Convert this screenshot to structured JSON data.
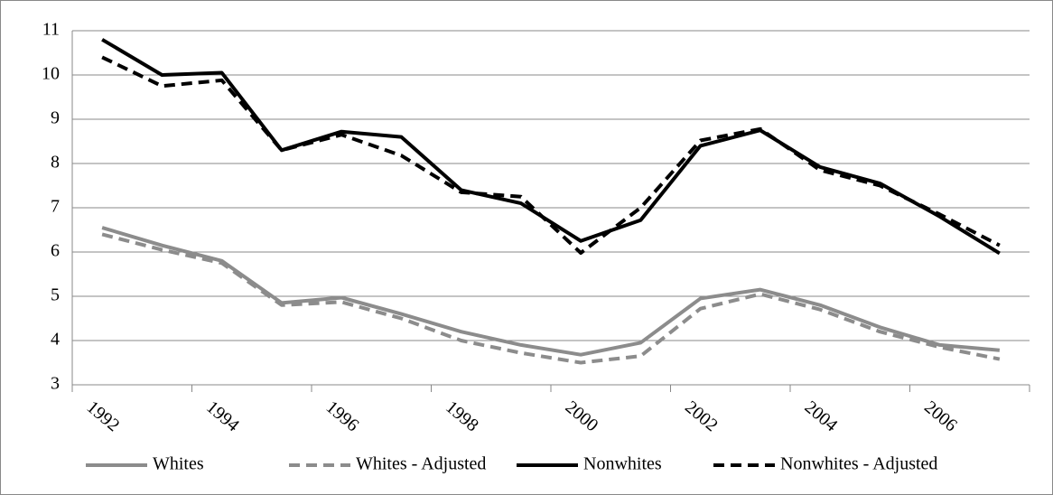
{
  "chart_data": {
    "type": "line",
    "categories": [
      "1992",
      null,
      "1994",
      null,
      "1996",
      null,
      "1998",
      null,
      "2000",
      null,
      "2002",
      null,
      "2004",
      null,
      "2006",
      null
    ],
    "series": [
      {
        "name": "Whites",
        "color": "#8c8c8c",
        "dashed": false,
        "values": [
          6.55,
          6.15,
          5.8,
          4.85,
          4.97,
          4.6,
          4.2,
          3.9,
          3.68,
          3.95,
          4.95,
          5.15,
          4.8,
          4.3,
          3.9,
          3.78
        ]
      },
      {
        "name": "Whites - Adjusted",
        "color": "#8c8c8c",
        "dashed": true,
        "values": [
          6.4,
          6.05,
          5.75,
          4.8,
          4.87,
          4.5,
          4.0,
          3.72,
          3.5,
          3.65,
          4.72,
          5.05,
          4.7,
          4.2,
          3.85,
          3.58
        ]
      },
      {
        "name": "Nonwhites",
        "color": "#000000",
        "dashed": false,
        "values": [
          10.8,
          10.0,
          10.05,
          8.3,
          8.72,
          8.6,
          7.4,
          7.1,
          6.25,
          6.72,
          8.4,
          8.75,
          7.92,
          7.55,
          6.8,
          5.97
        ]
      },
      {
        "name": "Nonwhites - Adjusted",
        "color": "#000000",
        "dashed": true,
        "values": [
          10.4,
          9.75,
          9.88,
          8.3,
          8.65,
          8.18,
          7.35,
          7.25,
          5.98,
          7.0,
          8.52,
          8.78,
          7.85,
          7.5,
          6.85,
          6.15
        ]
      }
    ],
    "ylim": [
      3,
      11
    ],
    "yticks": [
      3,
      4,
      5,
      6,
      7,
      8,
      9,
      10,
      11
    ],
    "grid": true,
    "legend": "bottom"
  }
}
